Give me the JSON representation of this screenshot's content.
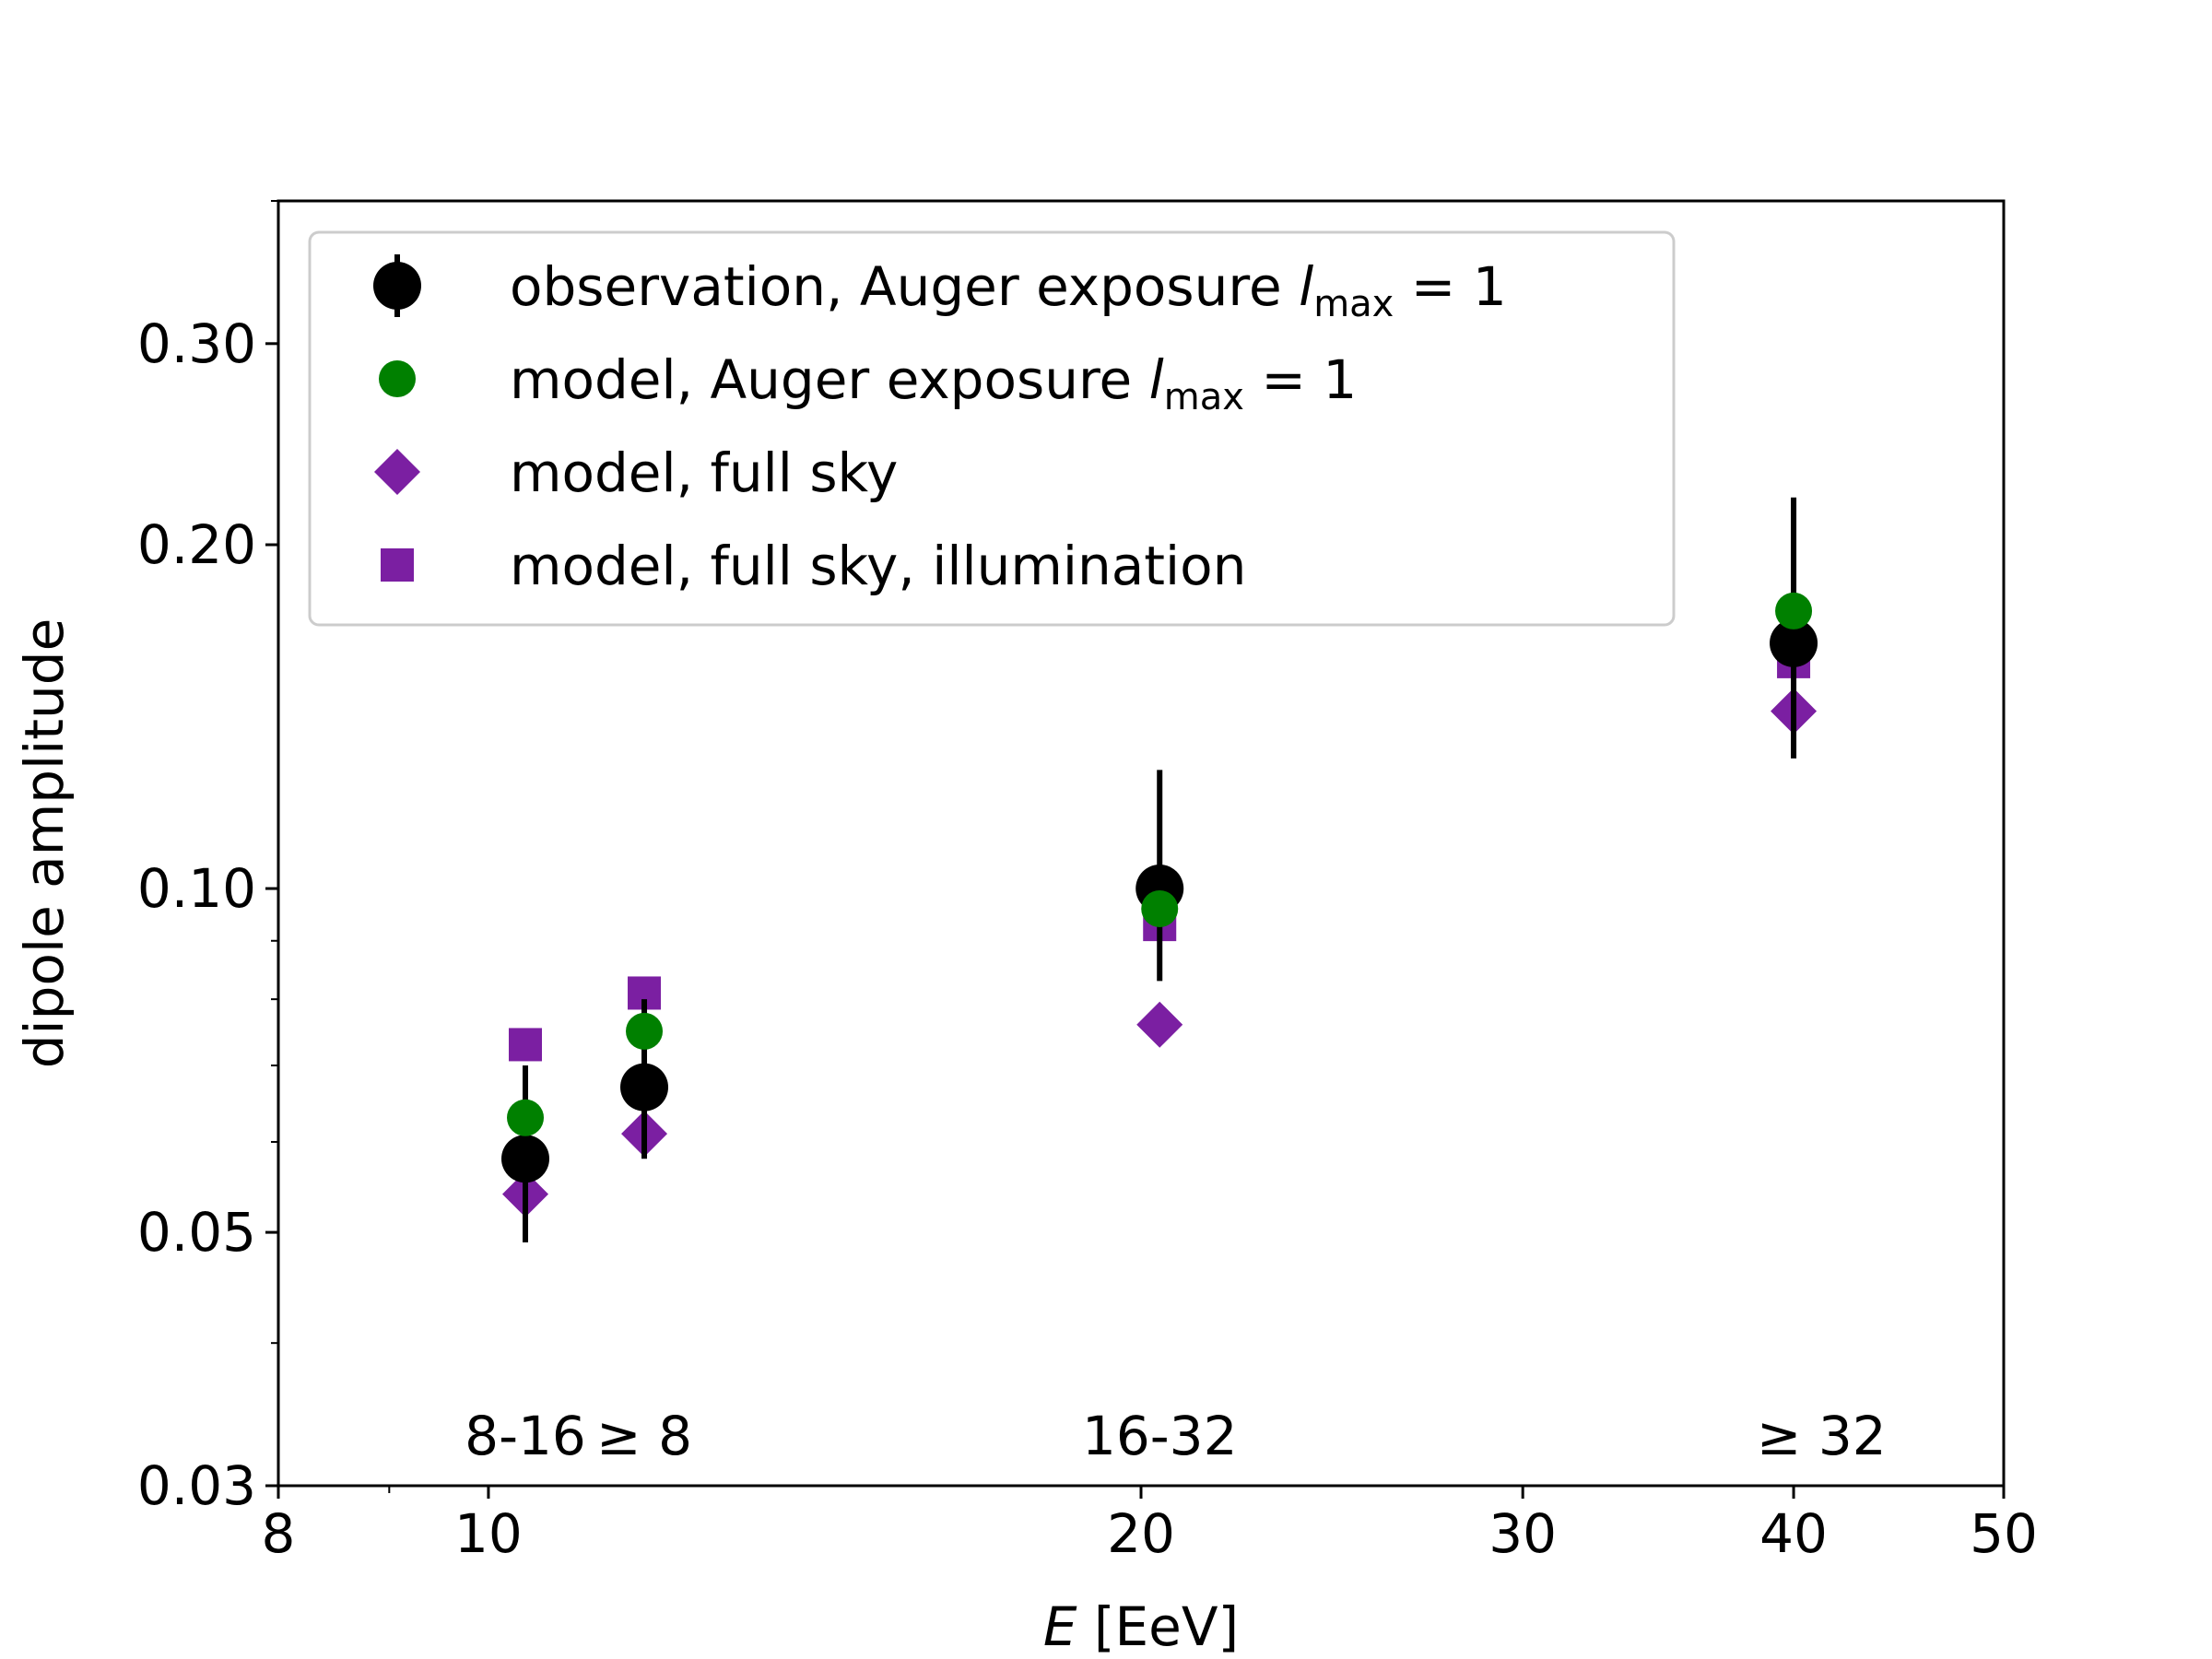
{
  "chart_data": {
    "type": "scatter",
    "xlabel_italic": "E",
    "xlabel_rest": " [EeV]",
    "ylabel": "dipole amplitude",
    "xscale": "log",
    "yscale": "log",
    "xlim": [
      8,
      50
    ],
    "ylim": [
      0.03,
      0.4
    ],
    "x_ticks": [
      {
        "value": 8,
        "label": "8"
      },
      {
        "value": 10,
        "label": "10"
      },
      {
        "value": 20,
        "label": "20"
      },
      {
        "value": 30,
        "label": "30"
      },
      {
        "value": 40,
        "label": "40"
      },
      {
        "value": 50,
        "label": "50"
      }
    ],
    "x_minor_ticks": [
      9
    ],
    "y_ticks": [
      {
        "value": 0.03,
        "label": "0.03"
      },
      {
        "value": 0.05,
        "label": "0.05"
      },
      {
        "value": 0.1,
        "label": "0.10"
      },
      {
        "value": 0.2,
        "label": "0.20"
      },
      {
        "value": 0.3,
        "label": "0.30"
      }
    ],
    "y_minor_ticks": [
      0.04,
      0.06,
      0.07,
      0.08,
      0.09,
      0.4
    ],
    "bin_labels": [
      {
        "x": 10.4,
        "text": "8-16"
      },
      {
        "x": 11.8,
        "text": "≥ 8"
      },
      {
        "x": 20.4,
        "text": "16-32"
      },
      {
        "x": 41.2,
        "text": "≥ 32"
      }
    ],
    "legend_position": "upper-left",
    "series": [
      {
        "name_text": "model, full sky, illumination",
        "marker": "square",
        "color": "#7b1fa2",
        "points": [
          {
            "x": 10.4,
            "y": 0.073
          },
          {
            "x": 11.8,
            "y": 0.081
          },
          {
            "x": 20.4,
            "y": 0.093
          },
          {
            "x": 40.0,
            "y": 0.158
          }
        ]
      },
      {
        "name_text": "model, full sky",
        "marker": "diamond",
        "color": "#7b1fa2",
        "points": [
          {
            "x": 10.4,
            "y": 0.054
          },
          {
            "x": 11.8,
            "y": 0.061
          },
          {
            "x": 20.4,
            "y": 0.076
          },
          {
            "x": 40.0,
            "y": 0.143
          }
        ]
      },
      {
        "name_text": "observation, Auger exposure",
        "name_math": "l",
        "name_sub": "max",
        "name_eq": " = 1",
        "marker": "circle-errorbar",
        "color": "#000000",
        "points": [
          {
            "x": 10.4,
            "y": 0.058,
            "yerr_low": 0.049,
            "yerr_high": 0.07
          },
          {
            "x": 11.8,
            "y": 0.067,
            "yerr_low": 0.058,
            "yerr_high": 0.08
          },
          {
            "x": 20.4,
            "y": 0.1,
            "yerr_low": 0.083,
            "yerr_high": 0.127
          },
          {
            "x": 40.0,
            "y": 0.164,
            "yerr_low": 0.13,
            "yerr_high": 0.22
          }
        ]
      },
      {
        "name_text": "model, Auger exposure",
        "name_math": "l",
        "name_sub": "max",
        "name_eq": " = 1",
        "marker": "circle",
        "color": "#008000",
        "points": [
          {
            "x": 10.4,
            "y": 0.063
          },
          {
            "x": 11.8,
            "y": 0.075
          },
          {
            "x": 20.4,
            "y": 0.096
          },
          {
            "x": 40.0,
            "y": 0.175
          }
        ]
      }
    ],
    "legend_order": [
      2,
      3,
      1,
      0
    ]
  }
}
